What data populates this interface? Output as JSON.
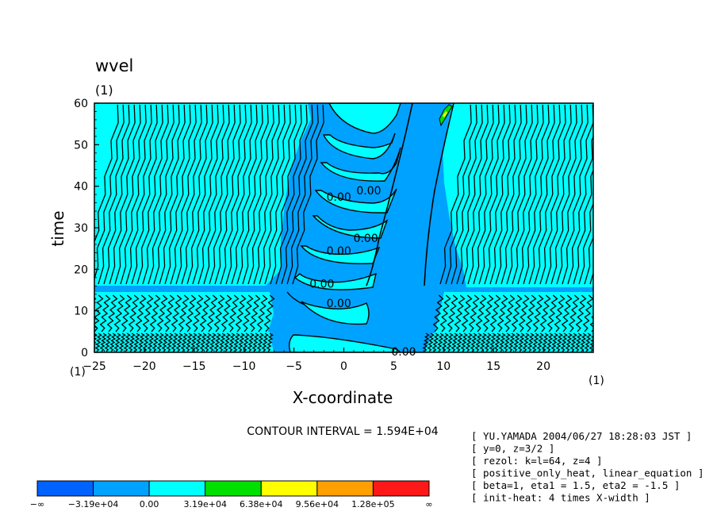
{
  "chart_data": {
    "type": "contour",
    "title": "wvel",
    "units": "(1)",
    "xlabel": "X-coordinate",
    "ylabel": "time",
    "x_units": "(1)",
    "y_units": "(1)",
    "xlim": [
      -25,
      25
    ],
    "ylim": [
      0,
      60
    ],
    "x_ticks": [
      -25,
      -20,
      -15,
      -10,
      -5,
      0,
      5,
      10,
      15,
      20
    ],
    "y_ticks": [
      0,
      10,
      20,
      30,
      40,
      50,
      60
    ],
    "contour_interval": "CONTOUR INTERVAL = 1.594E+04",
    "contour_labels": [
      {
        "text": "0.00",
        "x": 2.5,
        "y": 39
      },
      {
        "text": "0.00",
        "x": -0.5,
        "y": 37.5
      },
      {
        "text": "0.00",
        "x": 2.2,
        "y": 27.5
      },
      {
        "text": "0.00",
        "x": -0.5,
        "y": 24.5
      },
      {
        "text": "0.00",
        "x": -2.2,
        "y": 16.5
      },
      {
        "text": "0.00",
        "x": -0.5,
        "y": 11.8
      },
      {
        "text": "0.00",
        "x": 6.0,
        "y": 0.2
      }
    ],
    "colorbar": {
      "colors": [
        "#0062ff",
        "#00a2ff",
        "#00ffff",
        "#00e000",
        "#ffff00",
        "#ffa000",
        "#ff1818"
      ],
      "labels": [
        "-∞",
        "-3.19e+04",
        "0.00",
        "3.19e+04",
        "6.38e+04",
        "9.56e+04",
        "1.28e+05",
        "∞"
      ]
    },
    "info_lines": [
      "[ YU.YAMADA 2004/06/27 18:28:03 JST ]",
      "[ y=0, z=3/2 ]",
      "[ rezol: k=l=64, z=4 ]",
      "[ positive_only_heat, linear_equation ]",
      "[ beta=1, eta1 = 1.5, eta2 = -1.5 ]",
      "[ init-heat: 4 times X-width ]"
    ]
  }
}
